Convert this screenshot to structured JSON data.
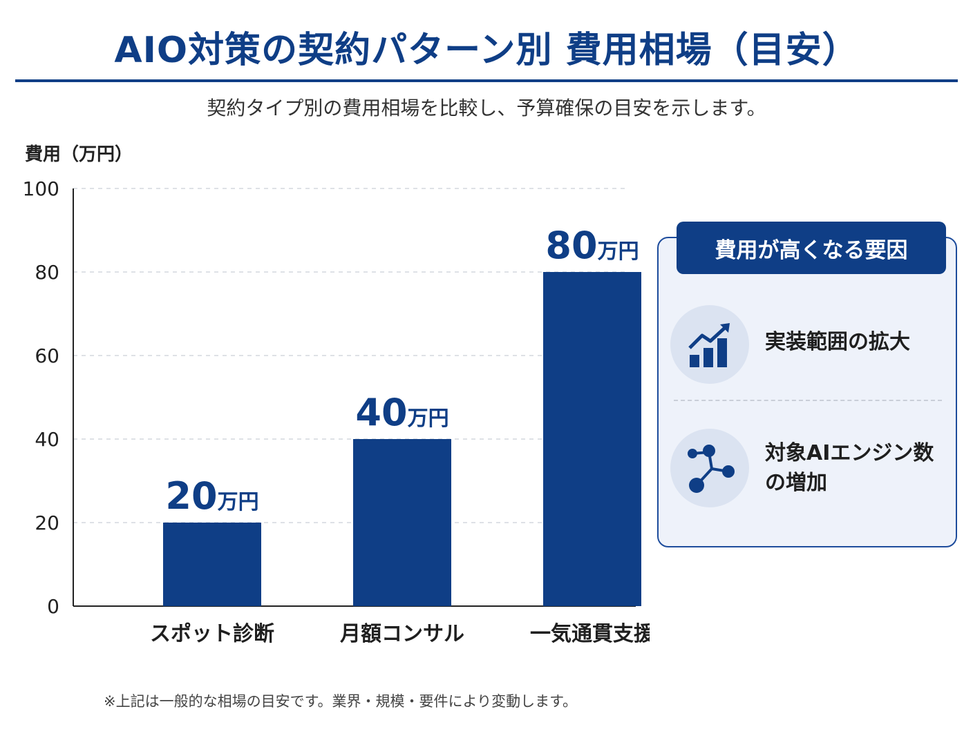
{
  "title": "AIO対策の契約パターン別 費用相場（目安）",
  "subtitle": "契約タイプ別の費用相場を比較し、予算確保の目安を示します。",
  "note": "※上記は一般的な相場の目安です。業界・規模・要件により変動します。",
  "colors": {
    "primary": "#0f3e86",
    "panel_bg": "#eef2fa",
    "icon_bg": "#dbe3f1"
  },
  "chart_data": {
    "type": "bar",
    "ylabel": "費用（万円）",
    "categories": [
      "スポット診断",
      "月額コンサル",
      "一気通貫支援"
    ],
    "values": [
      20,
      40,
      80
    ],
    "value_labels": [
      {
        "num": "20",
        "unit": "万円"
      },
      {
        "num": "40",
        "unit": "万円"
      },
      {
        "num": "80",
        "unit": "万円"
      }
    ],
    "ylim": [
      0,
      100
    ],
    "yticks": [
      0,
      20,
      40,
      60,
      80,
      100
    ],
    "grid": true
  },
  "panel": {
    "title": "費用が高くなる要因",
    "factors": [
      {
        "line1": "実装範囲の拡大",
        "line2": "",
        "icon": "growth-chart-icon"
      },
      {
        "line1": "対象AIエンジン数",
        "line2": "の増加",
        "icon": "network-nodes-icon"
      }
    ]
  }
}
